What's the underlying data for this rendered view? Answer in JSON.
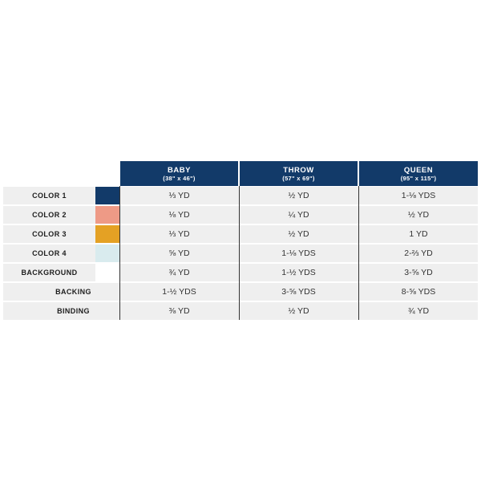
{
  "columns": [
    {
      "name": "BABY",
      "size": "(38\" x 46\")"
    },
    {
      "name": "THROW",
      "size": "(57\" x 69\")"
    },
    {
      "name": "QUEEN",
      "size": "(95\" x 115\")"
    }
  ],
  "rows": [
    {
      "label": "COLOR 1",
      "swatch": "#123a69",
      "values": [
        "⅓ YD",
        "½ YD",
        "1-⅛ YDS"
      ]
    },
    {
      "label": "COLOR 2",
      "swatch": "#ee9a86",
      "values": [
        "⅛ YD",
        "¼ YD",
        "½ YD"
      ]
    },
    {
      "label": "COLOR 3",
      "swatch": "#e4a124",
      "values": [
        "⅓ YD",
        "½ YD",
        "1 YD"
      ]
    },
    {
      "label": "COLOR 4",
      "swatch": "#d9ebee",
      "values": [
        "⅝ YD",
        "1-⅛ YDS",
        "2-⅔ YD"
      ]
    },
    {
      "label": "BACKGROUND",
      "swatch": "#ffffff",
      "values": [
        "¾ YD",
        "1-½ YDS",
        "3-⅝ YD"
      ]
    },
    {
      "label": "BACKING",
      "values": [
        "1-½ YDS",
        "3-⅝ YDS",
        "8-⅝ YDS"
      ]
    },
    {
      "label": "BINDING",
      "values": [
        "⅜ YD",
        "½ YD",
        "¾ YD"
      ]
    }
  ]
}
